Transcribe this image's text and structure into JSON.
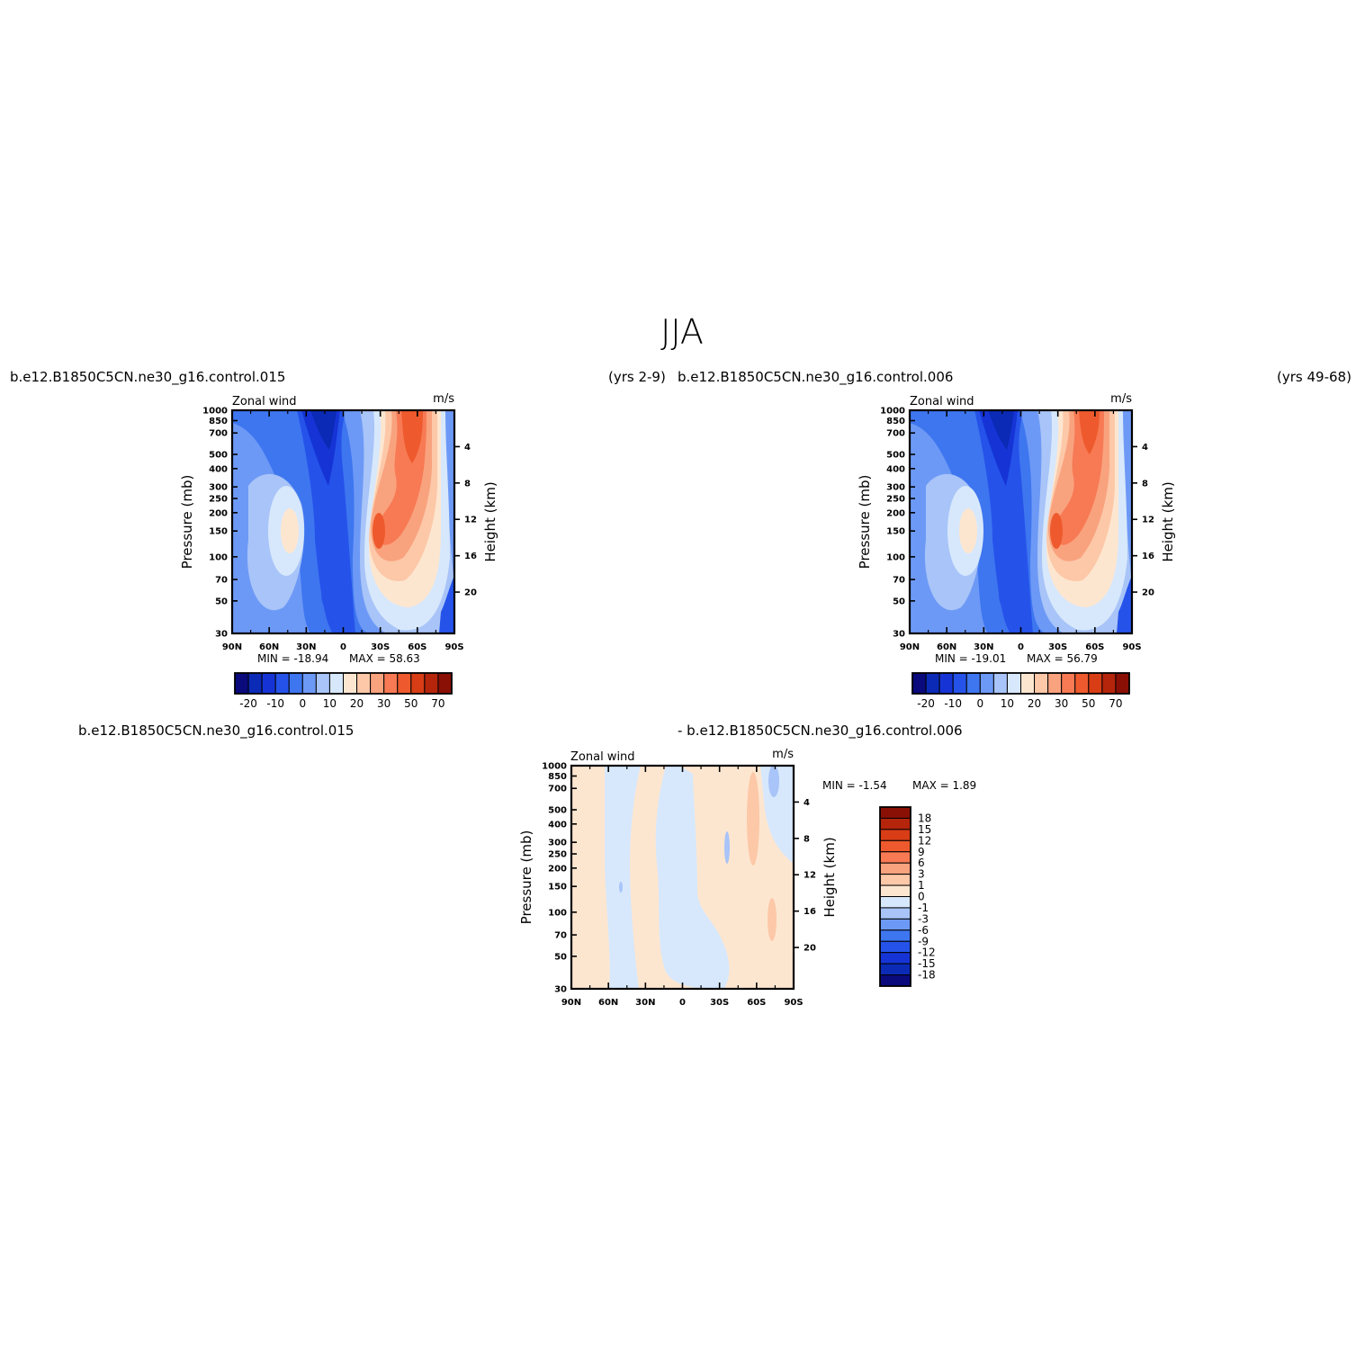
{
  "figure": {
    "title": "JJA"
  },
  "panels": [
    {
      "id": "top-left",
      "left_label": "b.e12.B1850C5CN.ne30_g16.control.015",
      "right_label": "(yrs 2-9)",
      "inner_left": "Zonal wind",
      "inner_right": "m/s",
      "min_text": "MIN = -18.94",
      "max_text": "MAX = 58.63"
    },
    {
      "id": "top-right",
      "left_label": "b.e12.B1850C5CN.ne30_g16.control.006",
      "right_label": "(yrs 49-68)",
      "inner_left": "Zonal wind",
      "inner_right": "m/s",
      "min_text": "MIN = -19.01",
      "max_text": "MAX = 56.79"
    },
    {
      "id": "bottom-diff",
      "left_label": "b.e12.B1850C5CN.ne30_g16.control.015",
      "right_label": "- b.e12.B1850C5CN.ne30_g16.control.006",
      "inner_left": "Zonal wind",
      "inner_right": "m/s",
      "min_text": "MIN = -1.54",
      "max_text": "MAX = 1.89"
    }
  ],
  "chart_data": [
    {
      "type": "heatmap",
      "panel": "top-left",
      "xlabel": "",
      "ylabel": "Pressure (mb)",
      "y2label": "Height (km)",
      "x_ticks": [
        "90N",
        "60N",
        "30N",
        "0",
        "30S",
        "60S",
        "90S"
      ],
      "x_values": [
        90,
        60,
        30,
        0,
        -30,
        -60,
        -90
      ],
      "y_ticks": [
        30,
        50,
        70,
        100,
        150,
        200,
        250,
        300,
        400,
        500,
        700,
        850,
        1000
      ],
      "y_scale": "log",
      "ylim": [
        1000,
        30
      ],
      "y2_ticks": [
        4,
        8,
        12,
        16,
        20
      ],
      "min": -18.94,
      "max": 58.63,
      "colorbar": {
        "orientation": "horizontal",
        "levels": [
          -25,
          -20,
          -15,
          -10,
          -5,
          0,
          5,
          10,
          15,
          20,
          25,
          30,
          40,
          50,
          60,
          70
        ],
        "tick_labels": [
          "-20",
          "-10",
          "0",
          "10",
          "20",
          "30",
          "50",
          "70"
        ],
        "colors": [
          "#0a0a7c",
          "#0b2ab5",
          "#1634d6",
          "#2553ea",
          "#3e76f0",
          "#6d99f6",
          "#a8c4f8",
          "#d7e8fc",
          "#fde6d0",
          "#fcc8a8",
          "#f9a27e",
          "#f77a54",
          "#ee5a2d",
          "#d83d16",
          "#b4250c",
          "#8a1006"
        ]
      }
    },
    {
      "type": "heatmap",
      "panel": "top-right",
      "xlabel": "",
      "ylabel": "Pressure (mb)",
      "y2label": "Height (km)",
      "x_ticks": [
        "90N",
        "60N",
        "30N",
        "0",
        "30S",
        "60S",
        "90S"
      ],
      "x_values": [
        90,
        60,
        30,
        0,
        -30,
        -60,
        -90
      ],
      "y_ticks": [
        30,
        50,
        70,
        100,
        150,
        200,
        250,
        300,
        400,
        500,
        700,
        850,
        1000
      ],
      "y_scale": "log",
      "ylim": [
        1000,
        30
      ],
      "y2_ticks": [
        4,
        8,
        12,
        16,
        20
      ],
      "min": -19.01,
      "max": 56.79,
      "colorbar": {
        "orientation": "horizontal",
        "levels": [
          -25,
          -20,
          -15,
          -10,
          -5,
          0,
          5,
          10,
          15,
          20,
          25,
          30,
          40,
          50,
          60,
          70
        ],
        "tick_labels": [
          "-20",
          "-10",
          "0",
          "10",
          "20",
          "30",
          "50",
          "70"
        ],
        "colors": [
          "#0a0a7c",
          "#0b2ab5",
          "#1634d6",
          "#2553ea",
          "#3e76f0",
          "#6d99f6",
          "#a8c4f8",
          "#d7e8fc",
          "#fde6d0",
          "#fcc8a8",
          "#f9a27e",
          "#f77a54",
          "#ee5a2d",
          "#d83d16",
          "#b4250c",
          "#8a1006"
        ]
      }
    },
    {
      "type": "heatmap",
      "panel": "bottom-diff",
      "xlabel": "",
      "ylabel": "Pressure (mb)",
      "y2label": "Height (km)",
      "x_ticks": [
        "90N",
        "60N",
        "30N",
        "0",
        "30S",
        "60S",
        "90S"
      ],
      "x_values": [
        90,
        60,
        30,
        0,
        -30,
        -60,
        -90
      ],
      "y_ticks": [
        30,
        50,
        70,
        100,
        150,
        200,
        250,
        300,
        400,
        500,
        700,
        850,
        1000
      ],
      "y_scale": "log",
      "ylim": [
        1000,
        30
      ],
      "y2_ticks": [
        4,
        8,
        12,
        16,
        20
      ],
      "min": -1.54,
      "max": 1.89,
      "colorbar": {
        "orientation": "vertical",
        "levels": [
          18,
          15,
          12,
          9,
          6,
          3,
          1,
          0,
          -1,
          -3,
          -6,
          -9,
          -12,
          -15,
          -18
        ],
        "tick_labels": [
          "18",
          "15",
          "12",
          "9",
          "6",
          "3",
          "1",
          "0",
          "-1",
          "-3",
          "-6",
          "-9",
          "-12",
          "-15",
          "-18"
        ],
        "colors": [
          "#8a1006",
          "#b4250c",
          "#d83d16",
          "#ee5a2d",
          "#f77a54",
          "#f9a27e",
          "#fcc8a8",
          "#fde6d0",
          "#d7e8fc",
          "#a8c4f8",
          "#6d99f6",
          "#3e76f0",
          "#2553ea",
          "#1634d6",
          "#0b2ab5",
          "#0a0a7c"
        ]
      }
    }
  ]
}
